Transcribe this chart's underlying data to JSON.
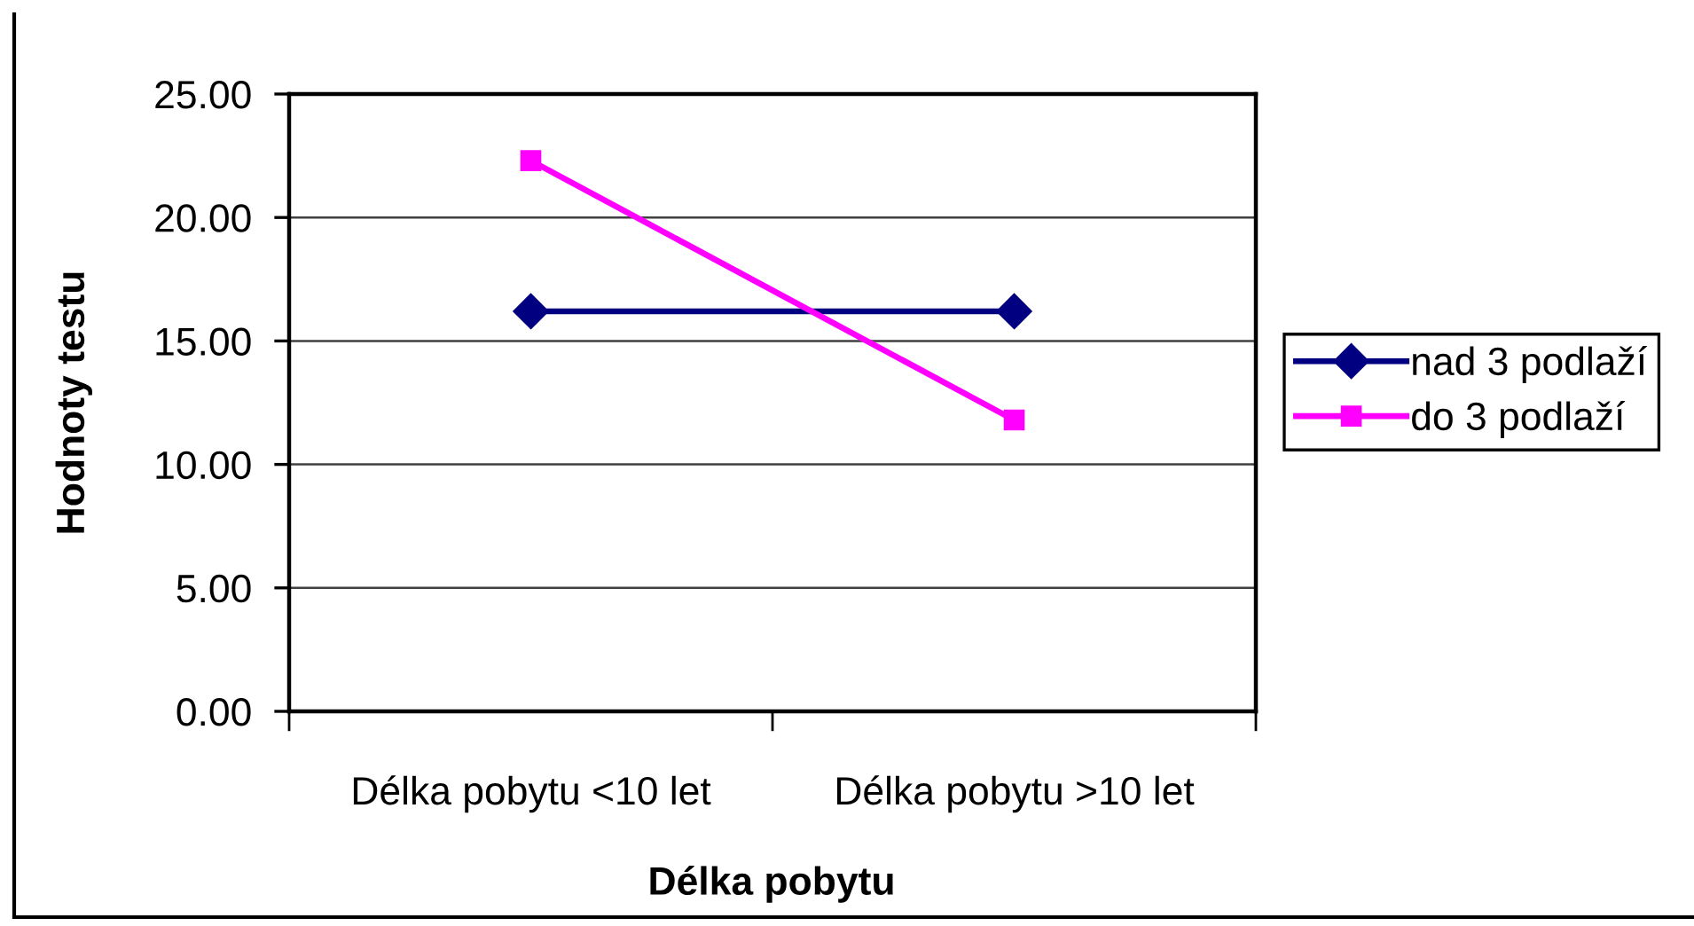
{
  "chart_data": {
    "type": "line",
    "categories": [
      "Délka pobytu <10 let",
      "Délka pobytu >10 let"
    ],
    "series": [
      {
        "name": "nad 3 podlaží",
        "color": "#000080",
        "values": [
          16.2,
          16.2
        ],
        "marker": "diamond"
      },
      {
        "name": "do 3 podlaží",
        "color": "#ff00ff",
        "values": [
          22.3,
          11.8
        ],
        "marker": "square"
      }
    ],
    "xlabel": "Délka pobytu",
    "ylabel": "Hodnoty testu",
    "ylim": [
      0,
      25
    ],
    "yticks": [
      {
        "value": 0,
        "label": "0.00"
      },
      {
        "value": 5,
        "label": "5.00"
      },
      {
        "value": 10,
        "label": "10.00"
      },
      {
        "value": 15,
        "label": "15.00"
      },
      {
        "value": 20,
        "label": "20.00"
      },
      {
        "value": 25,
        "label": "25.00"
      }
    ],
    "grid": "y",
    "legend": "right",
    "line_style": "solid"
  }
}
